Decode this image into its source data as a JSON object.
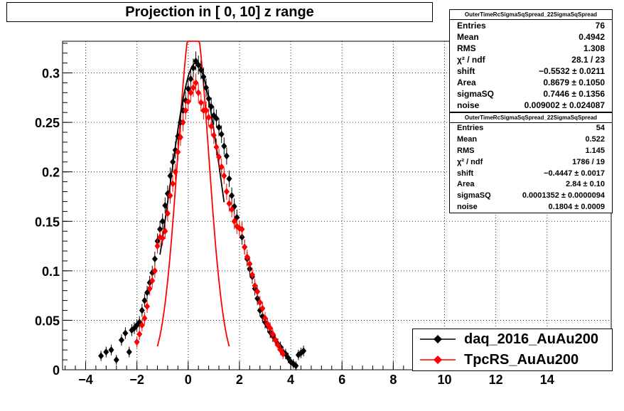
{
  "chart_data": {
    "type": "scatter",
    "title": "Projection in [   0,  10] z range",
    "xlim": [
      -4.9,
      16.5
    ],
    "ylim": [
      0,
      0.332
    ],
    "x_ticks": [
      "−4",
      "−2",
      "0",
      "2",
      "4",
      "6",
      "8",
      "10",
      "12",
      "14"
    ],
    "x_tick_values": [
      -4,
      -2,
      0,
      2,
      4,
      6,
      8,
      10,
      12,
      14
    ],
    "y_ticks": [
      "0",
      "0.05",
      "0.1",
      "0.15",
      "0.2",
      "0.25",
      "0.3"
    ],
    "y_tick_values": [
      0,
      0.05,
      0.1,
      0.15,
      0.2,
      0.25,
      0.3
    ],
    "grid": true,
    "legend_position": "bottom-right",
    "series": [
      {
        "name": "daq_2016_AuAu200",
        "color": "#000000",
        "marker": "diamond",
        "x": [
          -3.4,
          -3.2,
          -3.0,
          -2.8,
          -2.6,
          -2.45,
          -2.3,
          -2.2,
          -2.1,
          -2.0,
          -1.9,
          -1.8,
          -1.7,
          -1.6,
          -1.5,
          -1.4,
          -1.3,
          -1.2,
          -1.1,
          -1.0,
          -0.9,
          -0.8,
          -0.7,
          -0.6,
          -0.5,
          -0.4,
          -0.3,
          -0.2,
          -0.1,
          0.0,
          0.1,
          0.2,
          0.3,
          0.4,
          0.5,
          0.6,
          0.7,
          0.8,
          0.9,
          1.0,
          1.1,
          1.2,
          1.3,
          1.4,
          1.5,
          1.6,
          1.7,
          1.8,
          1.9,
          2.0,
          2.1,
          2.2,
          2.3,
          2.4,
          2.5,
          2.6,
          2.7,
          2.8,
          2.9,
          3.0,
          3.1,
          3.2,
          3.3,
          3.4,
          3.5,
          3.6,
          3.7,
          3.8,
          3.9,
          4.0,
          4.1,
          4.2,
          4.3,
          4.4,
          4.5
        ],
        "y": [
          0.014,
          0.018,
          0.02,
          0.01,
          0.03,
          0.037,
          0.018,
          0.04,
          0.042,
          0.045,
          0.048,
          0.06,
          0.07,
          0.078,
          0.088,
          0.098,
          0.112,
          0.13,
          0.142,
          0.15,
          0.166,
          0.178,
          0.196,
          0.21,
          0.222,
          0.236,
          0.25,
          0.262,
          0.272,
          0.284,
          0.294,
          0.305,
          0.312,
          0.308,
          0.303,
          0.296,
          0.285,
          0.274,
          0.266,
          0.257,
          0.254,
          0.245,
          0.238,
          0.226,
          0.216,
          0.193,
          0.176,
          0.165,
          0.154,
          0.143,
          0.134,
          0.124,
          0.112,
          0.102,
          0.094,
          0.082,
          0.072,
          0.06,
          0.054,
          0.048,
          0.044,
          0.038,
          0.034,
          0.03,
          0.026,
          0.023,
          0.018,
          0.016,
          0.012,
          0.008,
          0.006,
          0.004,
          0.015,
          0.017,
          0.019
        ]
      },
      {
        "name": "TpcRS_AuAu200",
        "color": "#ff0000",
        "marker": "diamond",
        "x": [
          -2.0,
          -1.9,
          -1.8,
          -1.7,
          -1.6,
          -1.5,
          -1.4,
          -1.3,
          -1.2,
          -1.1,
          -1.0,
          -0.9,
          -0.8,
          -0.7,
          -0.6,
          -0.5,
          -0.4,
          -0.3,
          -0.2,
          -0.1,
          0.0,
          0.1,
          0.2,
          0.3,
          0.4,
          0.5,
          0.6,
          0.7,
          0.8,
          0.9,
          1.0,
          1.1,
          1.2,
          1.3,
          1.4,
          1.5,
          1.6,
          1.7,
          1.8,
          1.9,
          2.0,
          2.1,
          2.2,
          2.3,
          2.4,
          2.5,
          2.6,
          2.7,
          2.8,
          2.9,
          3.0,
          3.1,
          3.2,
          3.3,
          3.4,
          3.5,
          3.6,
          3.7
        ],
        "y": [
          0.028,
          0.036,
          0.045,
          0.052,
          0.064,
          0.082,
          0.09,
          0.1,
          0.125,
          0.134,
          0.133,
          0.14,
          0.158,
          0.176,
          0.188,
          0.2,
          0.22,
          0.235,
          0.25,
          0.262,
          0.271,
          0.28,
          0.285,
          0.29,
          0.28,
          0.27,
          0.262,
          0.262,
          0.255,
          0.246,
          0.237,
          0.225,
          0.215,
          0.205,
          0.196,
          0.18,
          0.168,
          0.162,
          0.15,
          0.145,
          0.143,
          0.142,
          0.124,
          0.114,
          0.107,
          0.096,
          0.085,
          0.079,
          0.068,
          0.062,
          0.052,
          0.046,
          0.042,
          0.036,
          0.03,
          0.025,
          0.02,
          0.016
        ]
      }
    ]
  },
  "stats_boxes": [
    {
      "header": "OuterTimeRcSigmaSqSpread_22SigmaSqSpread",
      "rows": [
        {
          "label": "Entries",
          "value": "76"
        },
        {
          "label": "Mean",
          "value": "0.4942"
        },
        {
          "label": "RMS",
          "value": "1.308"
        },
        {
          "label": "χ² / ndf",
          "value": "28.1 / 23"
        },
        {
          "label": "shift",
          "value": "−0.5532 ± 0.0211"
        },
        {
          "label": "Area",
          "value": "0.8679 ± 0.1050"
        },
        {
          "label": "sigmaSQ",
          "value": "0.7446 ± 0.1356"
        },
        {
          "label": "noise",
          "value": "0.009002 ± 0.024087"
        }
      ]
    },
    {
      "header": "OuterTimeRcSigmaSqSpread_22SigmaSqSpread",
      "rows": [
        {
          "label": "Entries",
          "value": "54"
        },
        {
          "label": "Mean",
          "value": "0.522"
        },
        {
          "label": "RMS",
          "value": "1.145"
        },
        {
          "label": "χ² / ndf",
          "value": "1786 / 19"
        },
        {
          "label": "shift",
          "value": "−0.4447 ± 0.0017"
        },
        {
          "label": "Area",
          "value": "2.84 ± 0.10"
        },
        {
          "label": "sigmaSQ",
          "value": "0.0001352 ± 0.0000094"
        },
        {
          "label": "noise",
          "value": "0.1804 ± 0.0009"
        }
      ]
    }
  ]
}
